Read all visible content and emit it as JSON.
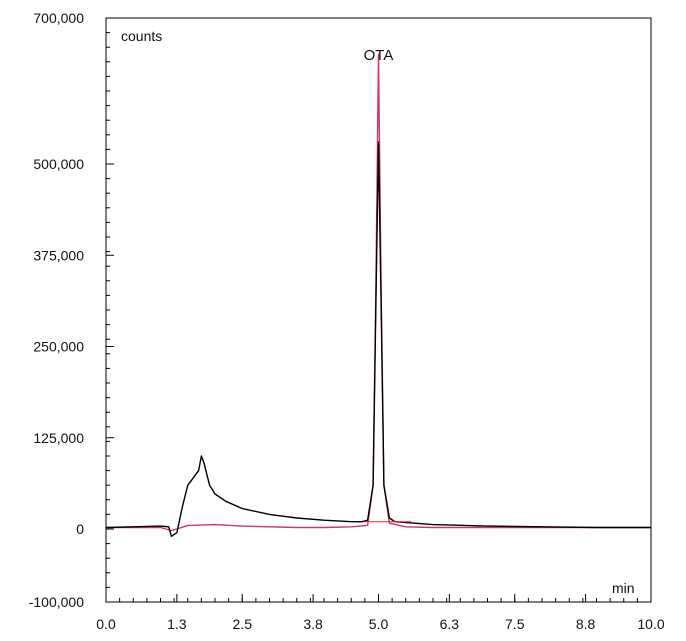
{
  "chart_data": {
    "type": "line",
    "title": "",
    "xlabel": "min",
    "ylabel": "counts",
    "xlim": [
      0,
      10
    ],
    "ylim": [
      -100000,
      700000
    ],
    "x_ticks": [
      0.0,
      1.3,
      2.5,
      3.8,
      5.0,
      6.3,
      7.5,
      8.8,
      10.0
    ],
    "x_tick_labels": [
      "0.0",
      "1.3",
      "2.5",
      "3.8",
      "5.0",
      "6.3",
      "7.5",
      "8.8",
      "10.0"
    ],
    "y_ticks": [
      -100000,
      0,
      125000,
      250000,
      375000,
      500000,
      700000
    ],
    "y_tick_labels": [
      "-100,000",
      "0",
      "125,000",
      "250,000",
      "375,000",
      "500,000",
      "700,000"
    ],
    "grid": false,
    "legend": "none",
    "annotations": [
      {
        "text": "OTA",
        "x": 5.0,
        "y": 640000
      }
    ],
    "series": [
      {
        "color": "#000000",
        "x": [
          0.0,
          0.5,
          1.0,
          1.15,
          1.2,
          1.3,
          1.4,
          1.5,
          1.6,
          1.7,
          1.75,
          1.8,
          1.85,
          1.9,
          2.0,
          2.2,
          2.5,
          3.0,
          3.5,
          4.0,
          4.5,
          4.7,
          4.8,
          4.9,
          4.95,
          5.0,
          5.05,
          5.1,
          5.2,
          5.3,
          6.0,
          7.0,
          8.0,
          9.0,
          10.0
        ],
        "y": [
          2000,
          3000,
          4000,
          3000,
          -10000,
          -5000,
          30000,
          60000,
          70000,
          80000,
          100000,
          90000,
          75000,
          60000,
          48000,
          38000,
          28000,
          20000,
          15000,
          12000,
          10000,
          10000,
          12000,
          60000,
          300000,
          530000,
          300000,
          60000,
          15000,
          10000,
          6000,
          4000,
          3000,
          2000,
          2000
        ]
      },
      {
        "color": "#cc3377",
        "x": [
          0.0,
          0.5,
          1.0,
          1.2,
          1.3,
          1.5,
          2.0,
          2.5,
          3.0,
          3.5,
          4.0,
          4.5,
          4.8,
          4.9,
          4.95,
          5.0,
          5.05,
          5.1,
          5.2,
          5.5,
          6.0,
          7.0,
          8.0,
          9.0,
          10.0
        ],
        "y": [
          2000,
          2000,
          2000,
          -2000,
          0,
          5000,
          6000,
          4000,
          3000,
          2000,
          2000,
          3000,
          5000,
          60000,
          320000,
          650000,
          320000,
          60000,
          8000,
          3000,
          2000,
          2000,
          2000,
          2000,
          2000
        ]
      }
    ],
    "baseline": {
      "color": "#ee2222",
      "x": [
        4.75,
        5.6
      ],
      "y": [
        10000,
        10000
      ]
    }
  }
}
